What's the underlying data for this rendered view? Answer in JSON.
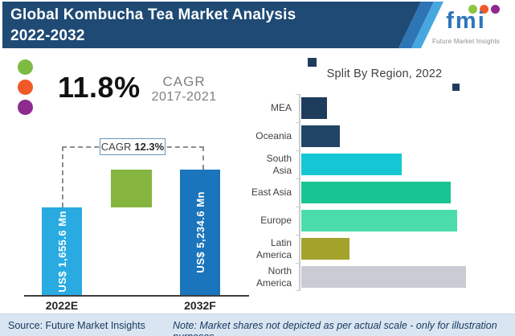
{
  "header": {
    "title_line1": "Global Kombucha Tea Market Analysis",
    "title_line2": "2022-2032",
    "bg_color": "#1E4A74",
    "stripe_colors": [
      "#2E75B6",
      "#47A7DF"
    ],
    "logo": {
      "brand": "fmi",
      "tagline": "Future Market Insights",
      "brand_color": "#2E75BC",
      "balloon_colors": [
        "#8DC63F",
        "#F05A28",
        "#92278F"
      ]
    }
  },
  "stats": {
    "value": "11.8%",
    "label": "CAGR",
    "period": "2017-2021",
    "dot_colors": [
      "#7DBB42",
      "#F05A28",
      "#8E2A8E"
    ]
  },
  "chart_data": [
    {
      "type": "bar",
      "orientation": "vertical",
      "categories": [
        "2022E",
        "2032F"
      ],
      "values": [
        1655.6,
        5234.6
      ],
      "unit": "US$ Mn",
      "bar_labels": [
        "US$ 1,655.6 Mn",
        "US$ 5,234.6 Mn"
      ],
      "bar_colors": [
        "#29ABE2",
        "#1B75BC"
      ],
      "annotation": {
        "label": "CAGR",
        "value": "12.3%"
      },
      "accent_square_color": "#85B43F",
      "not_to_scale": true
    },
    {
      "type": "bar",
      "orientation": "horizontal",
      "title": "Split By Region, 2022",
      "categories": [
        "MEA",
        "Oceania",
        "South Asia",
        "East Asia",
        "Europe",
        "Latin America",
        "North America"
      ],
      "length_pct": [
        15,
        22,
        58,
        86,
        90,
        28,
        95
      ],
      "bar_colors": [
        "#1E3C5C",
        "#214564",
        "#15C7D4",
        "#19C493",
        "#4ADDAB",
        "#A3A22A",
        "#C9CCD4"
      ],
      "values_labeled": false,
      "not_to_scale": true,
      "decorative_square_color": "#1E3C5C"
    }
  ],
  "footer": {
    "source": "Source: Future Market Insights",
    "note": "Note: Market shares not depicted as per actual scale - only for illustration purposes",
    "bg_color": "#D9E6F2"
  }
}
